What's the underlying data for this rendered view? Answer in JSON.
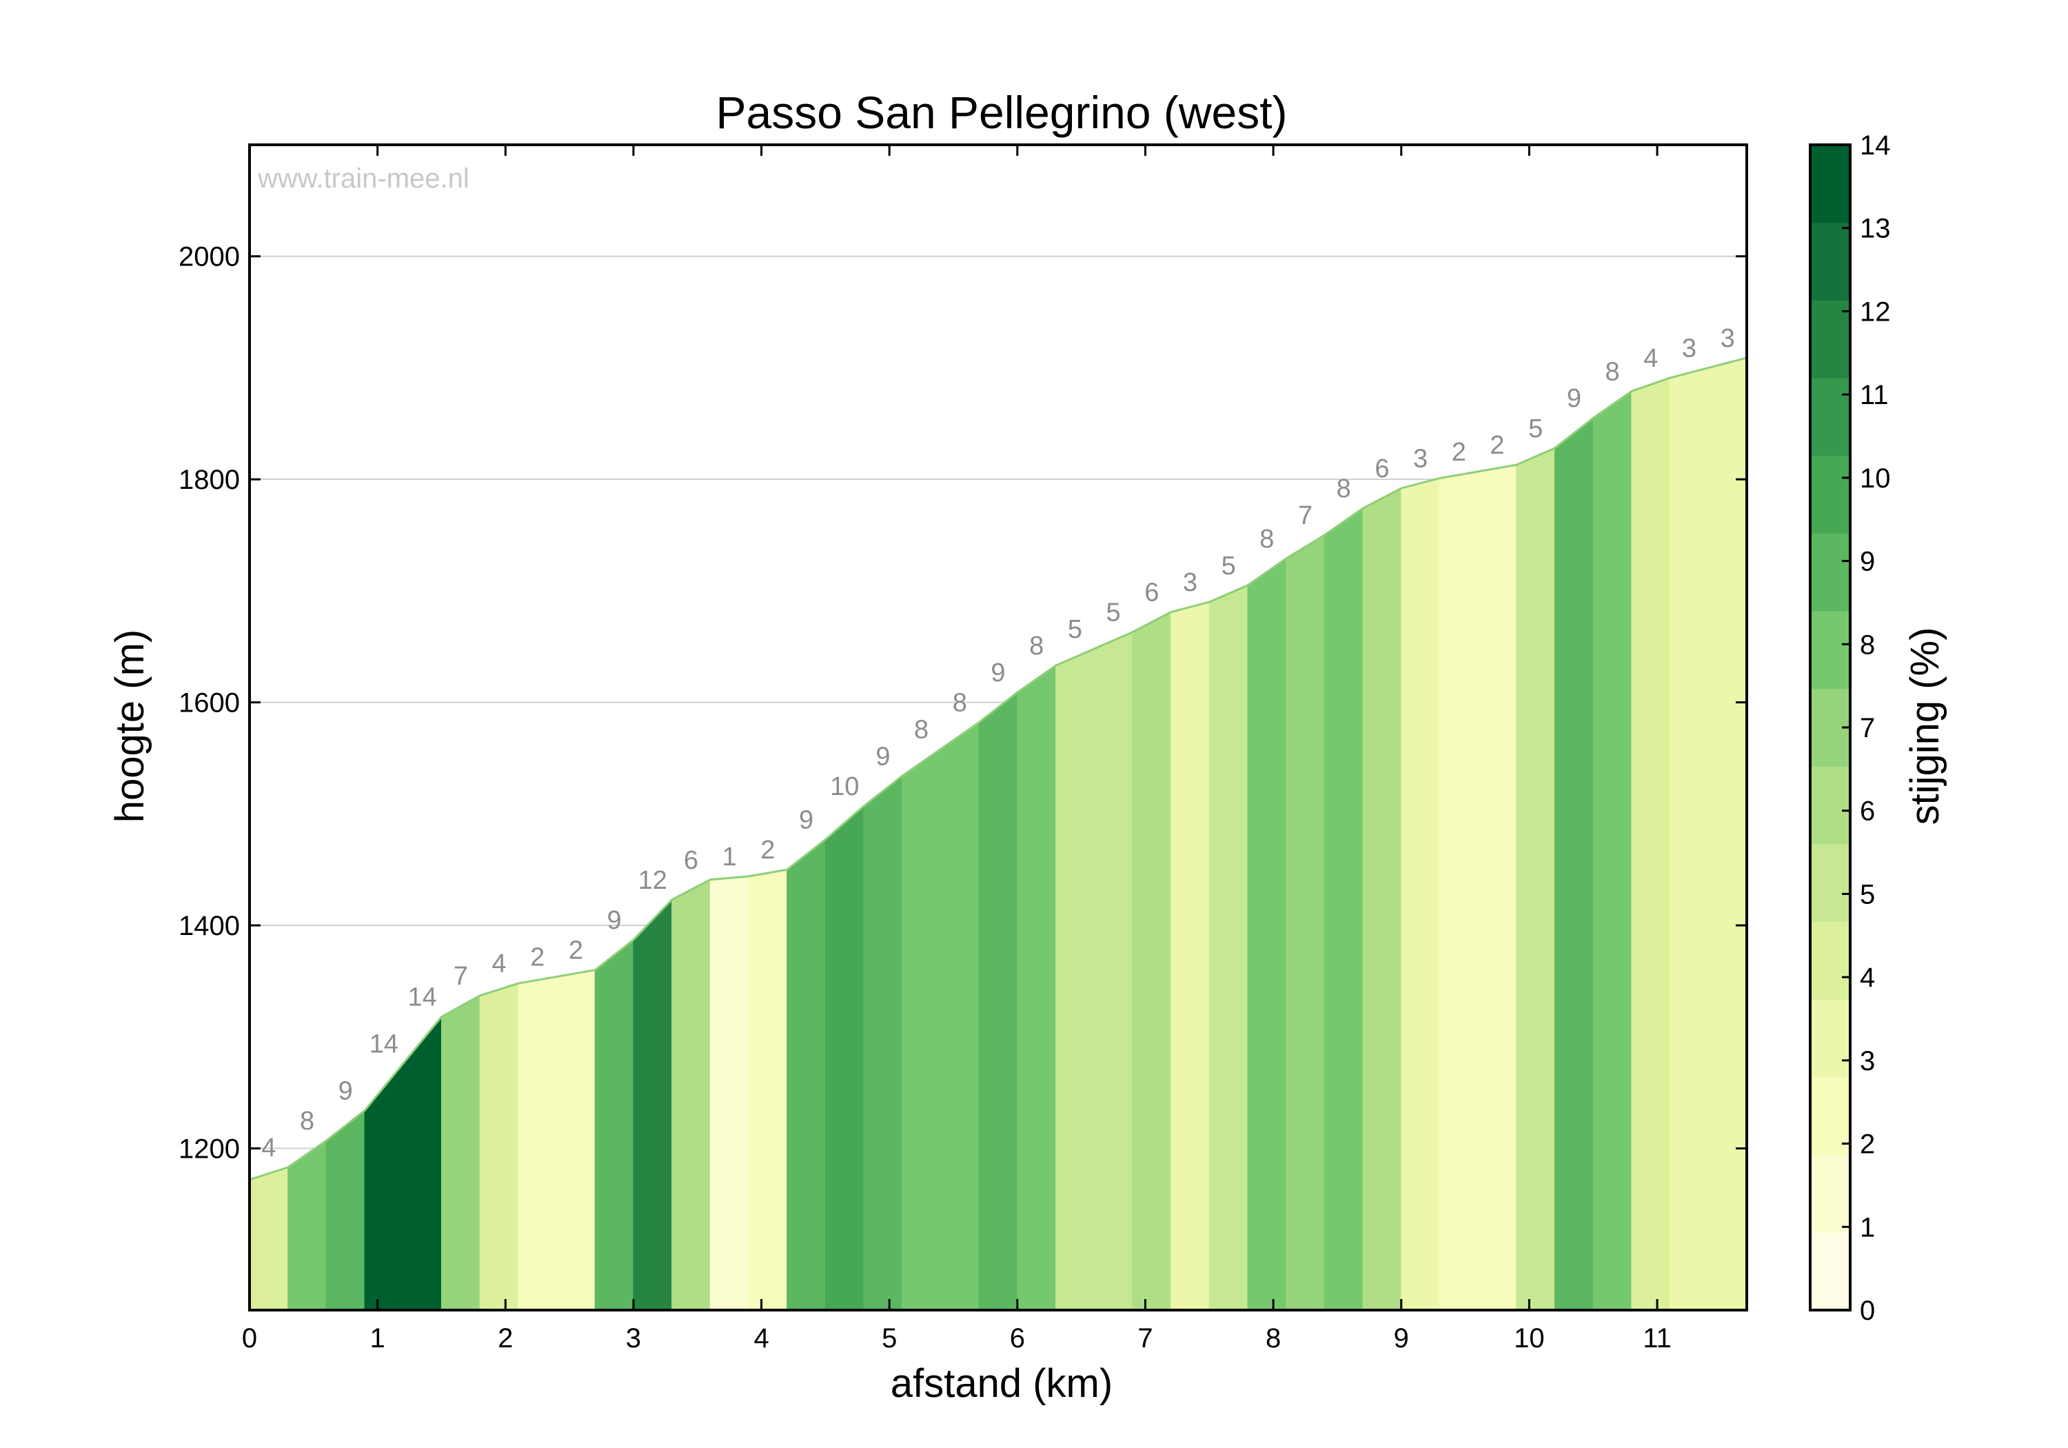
{
  "chart_data": {
    "type": "area",
    "title": "Passo San Pellegrino (west)",
    "watermark": "www.train-mee.nl",
    "xlabel": "afstand (km)",
    "ylabel": "hoogte (m)",
    "colorbar_label": "stijging (%)",
    "xlim": [
      0,
      11.7
    ],
    "ylim": [
      1055,
      2100
    ],
    "x_ticks": [
      0,
      1,
      2,
      3,
      4,
      5,
      6,
      7,
      8,
      9,
      10,
      11
    ],
    "y_ticks": [
      1200,
      1400,
      1600,
      1800,
      2000
    ],
    "colorbar_ticks": [
      0,
      1,
      2,
      3,
      4,
      5,
      6,
      7,
      8,
      9,
      10,
      11,
      12,
      13,
      14
    ],
    "grid": "horizontal",
    "colors": [
      "#fffde6",
      "#fbfdd0",
      "#f6fcbc",
      "#ecf7ac",
      "#dcf09c",
      "#c7e892",
      "#b0de86",
      "#95d47b",
      "#75c86d",
      "#5bb760",
      "#46a855",
      "#36984c",
      "#268543",
      "#14723a",
      "#005f2f"
    ],
    "segments": [
      {
        "x0": 0.0,
        "x1": 0.3,
        "grade": 4,
        "label": "4"
      },
      {
        "x0": 0.3,
        "x1": 0.6,
        "grade": 8,
        "label": "8"
      },
      {
        "x0": 0.6,
        "x1": 0.9,
        "grade": 9,
        "label": "9"
      },
      {
        "x0": 0.9,
        "x1": 1.2,
        "grade": 14,
        "label": "14"
      },
      {
        "x0": 1.2,
        "x1": 1.5,
        "grade": 14,
        "label": "14"
      },
      {
        "x0": 1.5,
        "x1": 1.8,
        "grade": 7,
        "label": "7"
      },
      {
        "x0": 1.8,
        "x1": 2.1,
        "grade": 4,
        "label": "4"
      },
      {
        "x0": 2.1,
        "x1": 2.4,
        "grade": 2,
        "label": "2"
      },
      {
        "x0": 2.4,
        "x1": 2.7,
        "grade": 2,
        "label": "2"
      },
      {
        "x0": 2.7,
        "x1": 3.0,
        "grade": 9,
        "label": "9"
      },
      {
        "x0": 3.0,
        "x1": 3.3,
        "grade": 12,
        "label": "12"
      },
      {
        "x0": 3.3,
        "x1": 3.6,
        "grade": 6,
        "label": "6"
      },
      {
        "x0": 3.6,
        "x1": 3.9,
        "grade": 1,
        "label": "1"
      },
      {
        "x0": 3.9,
        "x1": 4.2,
        "grade": 2,
        "label": "2"
      },
      {
        "x0": 4.2,
        "x1": 4.5,
        "grade": 9,
        "label": "9"
      },
      {
        "x0": 4.5,
        "x1": 4.8,
        "grade": 10,
        "label": "10"
      },
      {
        "x0": 4.8,
        "x1": 5.1,
        "grade": 9,
        "label": "9"
      },
      {
        "x0": 5.1,
        "x1": 5.4,
        "grade": 8,
        "label": "8"
      },
      {
        "x0": 5.4,
        "x1": 5.7,
        "grade": 8,
        "label": "8"
      },
      {
        "x0": 5.7,
        "x1": 6.0,
        "grade": 9,
        "label": "9"
      },
      {
        "x0": 6.0,
        "x1": 6.3,
        "grade": 8,
        "label": "8"
      },
      {
        "x0": 6.3,
        "x1": 6.6,
        "grade": 5,
        "label": "5"
      },
      {
        "x0": 6.6,
        "x1": 6.9,
        "grade": 5,
        "label": "5"
      },
      {
        "x0": 6.9,
        "x1": 7.2,
        "grade": 6,
        "label": "6"
      },
      {
        "x0": 7.2,
        "x1": 7.5,
        "grade": 3,
        "label": "3"
      },
      {
        "x0": 7.5,
        "x1": 7.8,
        "grade": 5,
        "label": "5"
      },
      {
        "x0": 7.8,
        "x1": 8.1,
        "grade": 8,
        "label": "8"
      },
      {
        "x0": 8.1,
        "x1": 8.4,
        "grade": 7,
        "label": "7"
      },
      {
        "x0": 8.4,
        "x1": 8.7,
        "grade": 8,
        "label": "8"
      },
      {
        "x0": 8.7,
        "x1": 9.0,
        "grade": 6,
        "label": "6"
      },
      {
        "x0": 9.0,
        "x1": 9.3,
        "grade": 3,
        "label": "3"
      },
      {
        "x0": 9.3,
        "x1": 9.6,
        "grade": 2,
        "label": "2"
      },
      {
        "x0": 9.6,
        "x1": 9.9,
        "grade": 2,
        "label": "2"
      },
      {
        "x0": 9.9,
        "x1": 10.2,
        "grade": 5,
        "label": "5"
      },
      {
        "x0": 10.2,
        "x1": 10.5,
        "grade": 9,
        "label": "9"
      },
      {
        "x0": 10.5,
        "x1": 10.8,
        "grade": 8,
        "label": "8"
      },
      {
        "x0": 10.8,
        "x1": 11.1,
        "grade": 4,
        "label": "4"
      },
      {
        "x0": 11.1,
        "x1": 11.4,
        "grade": 3,
        "label": "3"
      },
      {
        "x0": 11.4,
        "x1": 11.7,
        "grade": 3,
        "label": "3"
      }
    ],
    "elevations": [
      1172,
      1183,
      1207,
      1234,
      1276,
      1318,
      1337,
      1348,
      1354,
      1360,
      1387,
      1423,
      1441,
      1444,
      1450,
      1477,
      1507,
      1534,
      1558,
      1582,
      1609,
      1633,
      1648,
      1663,
      1681,
      1690,
      1705,
      1729,
      1750,
      1774,
      1792,
      1801,
      1807,
      1813,
      1828,
      1855,
      1879,
      1891,
      1900,
      1909
    ]
  }
}
